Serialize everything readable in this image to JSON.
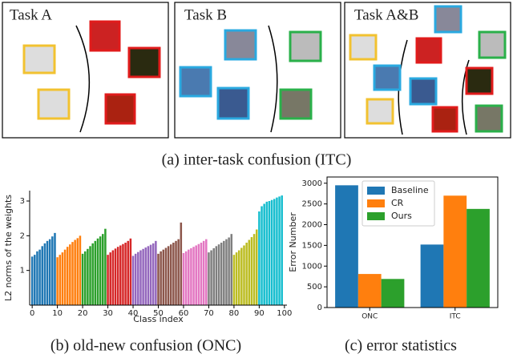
{
  "diagram": {
    "tasks": [
      {
        "label": "Task A"
      },
      {
        "label": "Task B"
      },
      {
        "label": "Task A&B"
      }
    ],
    "caption": "(a) inter-task confusion (ITC)"
  },
  "chart_data": [
    {
      "type": "bar",
      "caption": "(b) old-new confusion (ONC)",
      "x_label": "Class index",
      "y_label": "L2 norms of the weights",
      "xlim": [
        -1,
        101
      ],
      "xticks": [
        0,
        10,
        20,
        30,
        40,
        50,
        60,
        70,
        80,
        90,
        100
      ],
      "ylim": [
        0,
        3.3
      ],
      "yticks": [
        1,
        2,
        3
      ],
      "series": [
        {
          "color": "#1f77b4",
          "values": [
            1.4,
            1.45,
            1.55,
            1.6,
            1.7,
            1.78,
            1.85,
            1.9,
            1.98,
            2.08
          ]
        },
        {
          "color": "#ff7f0e",
          "values": [
            1.38,
            1.45,
            1.52,
            1.6,
            1.68,
            1.75,
            1.82,
            1.88,
            1.93,
            2.0
          ]
        },
        {
          "color": "#2ca02c",
          "values": [
            1.48,
            1.55,
            1.62,
            1.7,
            1.78,
            1.85,
            1.92,
            1.98,
            2.05,
            2.2
          ]
        },
        {
          "color": "#d62728",
          "values": [
            1.45,
            1.52,
            1.58,
            1.63,
            1.68,
            1.72,
            1.76,
            1.8,
            1.85,
            1.92
          ]
        },
        {
          "color": "#9467bd",
          "values": [
            1.42,
            1.48,
            1.53,
            1.58,
            1.62,
            1.66,
            1.7,
            1.74,
            1.78,
            1.85
          ]
        },
        {
          "color": "#8c564b",
          "values": [
            1.48,
            1.55,
            1.6,
            1.65,
            1.7,
            1.75,
            1.8,
            1.85,
            1.9,
            2.38
          ]
        },
        {
          "color": "#e377c2",
          "values": [
            1.5,
            1.55,
            1.6,
            1.64,
            1.68,
            1.72,
            1.76,
            1.8,
            1.85,
            1.9
          ]
        },
        {
          "color": "#7f7f7f",
          "values": [
            1.52,
            1.58,
            1.64,
            1.7,
            1.75,
            1.8,
            1.85,
            1.9,
            1.95,
            2.05
          ]
        },
        {
          "color": "#bcbd22",
          "values": [
            1.45,
            1.52,
            1.58,
            1.65,
            1.72,
            1.8,
            1.88,
            1.96,
            2.05,
            2.18
          ]
        },
        {
          "color": "#17becf",
          "values": [
            2.7,
            2.85,
            2.92,
            2.98,
            3.0,
            3.03,
            3.06,
            3.1,
            3.13,
            3.16
          ]
        }
      ]
    },
    {
      "type": "grouped_bar",
      "caption": "(c) error statistics",
      "y_label": "Error Number",
      "categories": [
        "ONC",
        "ITC"
      ],
      "ylim": [
        0,
        3150
      ],
      "yticks": [
        0,
        500,
        1000,
        1500,
        2000,
        2500,
        3000
      ],
      "legend": "upper center",
      "series": [
        {
          "name": "Baseline",
          "color": "#1f77b4",
          "values": [
            2950,
            1520
          ]
        },
        {
          "name": "CR",
          "color": "#ff7f0e",
          "values": [
            810,
            2700
          ]
        },
        {
          "name": "Ours",
          "color": "#2ca02c",
          "values": [
            690,
            2380
          ]
        }
      ]
    }
  ]
}
